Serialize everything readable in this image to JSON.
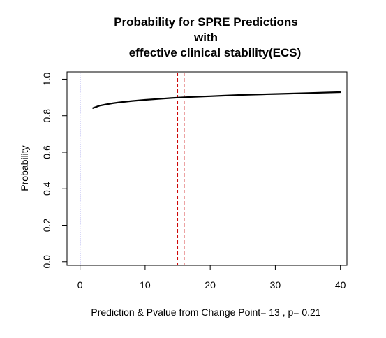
{
  "chart_data": {
    "type": "line",
    "title_lines": [
      "Probability for SPRE Predictions",
      "with",
      "effective clinical stability(ECS)"
    ],
    "xlabel": "Prediction & Pvalue from Change Point= 13 , p= 0.21",
    "ylabel": "Probability",
    "xlim": [
      -2,
      41
    ],
    "ylim": [
      -0.02,
      1.04
    ],
    "x_ticks": [
      0,
      10,
      20,
      30,
      40
    ],
    "y_ticks": [
      0.0,
      0.2,
      0.4,
      0.6,
      0.8,
      1.0
    ],
    "x_tick_labels": [
      "0",
      "10",
      "20",
      "30",
      "40"
    ],
    "y_tick_labels": [
      "0.0",
      "0.2",
      "0.4",
      "0.6",
      "0.8",
      "1.0"
    ],
    "grid": false,
    "series": [
      {
        "color": "#000000",
        "x": [
          2,
          3,
          4,
          5,
          6,
          8,
          10,
          12,
          14,
          16,
          18,
          20,
          22,
          25,
          28,
          30,
          32,
          35,
          38,
          40
        ],
        "y": [
          0.842,
          0.855,
          0.862,
          0.868,
          0.873,
          0.881,
          0.887,
          0.892,
          0.897,
          0.901,
          0.904,
          0.907,
          0.91,
          0.914,
          0.917,
          0.919,
          0.921,
          0.924,
          0.927,
          0.929
        ]
      }
    ],
    "vlines": [
      {
        "x": 0,
        "color": "#0000cc",
        "style": "dotted"
      },
      {
        "x": 15,
        "color": "#cc0000",
        "style": "dashed"
      },
      {
        "x": 16,
        "color": "#cc0000",
        "style": "dashed"
      }
    ]
  }
}
